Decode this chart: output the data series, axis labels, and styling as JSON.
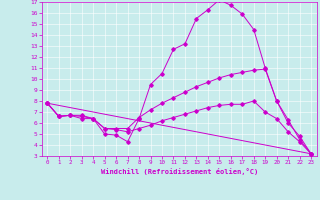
{
  "xlabel": "Windchill (Refroidissement éolien,°C)",
  "background_color": "#c8ecec",
  "line_color": "#cc00cc",
  "xlim": [
    -0.5,
    23.5
  ],
  "ylim": [
    3,
    17
  ],
  "yticks": [
    3,
    4,
    5,
    6,
    7,
    8,
    9,
    10,
    11,
    12,
    13,
    14,
    15,
    16,
    17
  ],
  "xticks": [
    0,
    1,
    2,
    3,
    4,
    5,
    6,
    7,
    8,
    9,
    10,
    11,
    12,
    13,
    14,
    15,
    16,
    17,
    18,
    19,
    20,
    21,
    22,
    23
  ],
  "lines": [
    [
      0,
      7.8,
      1,
      6.6,
      2,
      6.7,
      3,
      6.6,
      4,
      6.4,
      5,
      5.0,
      6,
      4.9,
      7,
      4.3,
      8,
      6.4,
      9,
      9.5,
      10,
      10.5,
      11,
      12.7,
      12,
      13.2,
      13,
      15.5,
      14,
      16.3,
      15,
      17.2,
      16,
      16.7,
      17,
      15.9,
      18,
      14.5,
      19,
      11.0,
      20,
      8.0,
      21,
      6.3,
      22,
      4.5,
      23,
      3.2
    ],
    [
      0,
      7.8,
      1,
      6.6,
      2,
      6.7,
      3,
      6.7,
      4,
      6.4,
      5,
      5.5,
      6,
      5.5,
      7,
      5.5,
      8,
      6.5,
      9,
      7.2,
      10,
      7.8,
      11,
      8.3,
      12,
      8.8,
      13,
      9.3,
      14,
      9.7,
      15,
      10.1,
      16,
      10.4,
      17,
      10.6,
      18,
      10.8,
      19,
      10.9,
      20,
      8.0,
      21,
      6.0,
      22,
      4.8,
      23,
      3.2
    ],
    [
      0,
      7.8,
      1,
      6.6,
      2,
      6.7,
      3,
      6.4,
      4,
      6.4,
      5,
      5.5,
      6,
      5.4,
      7,
      5.2,
      8,
      5.5,
      9,
      5.8,
      10,
      6.2,
      11,
      6.5,
      12,
      6.8,
      13,
      7.1,
      14,
      7.4,
      15,
      7.6,
      16,
      7.7,
      17,
      7.7,
      18,
      8.0,
      19,
      7.0,
      20,
      6.4,
      21,
      5.2,
      22,
      4.3,
      23,
      3.2
    ],
    [
      0,
      7.8,
      23,
      3.2
    ]
  ],
  "figsize": [
    3.2,
    2.0
  ],
  "dpi": 100
}
